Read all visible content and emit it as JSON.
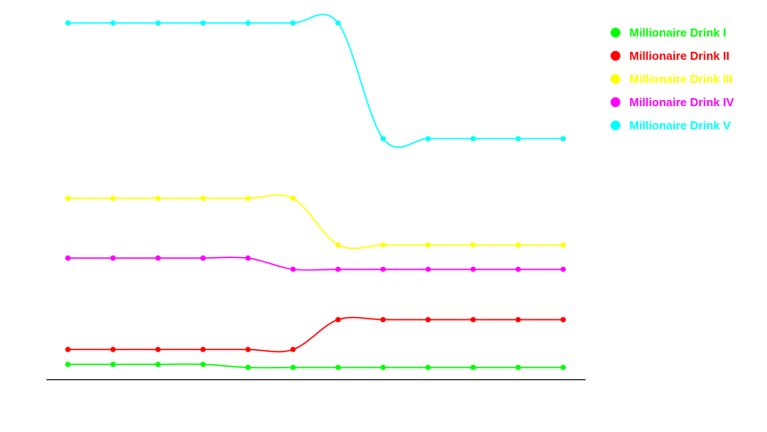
{
  "chart_data": {
    "type": "line",
    "title": "",
    "xlabel": "",
    "ylabel": "",
    "ylim": [
      0,
      100
    ],
    "grid": false,
    "legend_position": "right",
    "x": [
      1,
      2,
      3,
      4,
      5,
      6,
      7,
      8,
      9,
      10,
      11,
      12
    ],
    "series": [
      {
        "name": "Millionaire Drink I",
        "color": "#00ff00",
        "values": [
          4.0,
          4.0,
          4.0,
          4.0,
          3.2,
          3.2,
          3.2,
          3.2,
          3.2,
          3.2,
          3.2,
          3.2
        ]
      },
      {
        "name": "Millionaire Drink II",
        "color": "#ff0000",
        "values": [
          8.0,
          8.0,
          8.0,
          8.0,
          8.0,
          8.0,
          16.0,
          16.0,
          16.0,
          16.0,
          16.0,
          16.0
        ]
      },
      {
        "name": "Millionaire Drink III",
        "color": "#ffff00",
        "values": [
          48.5,
          48.5,
          48.5,
          48.5,
          48.5,
          48.5,
          36.0,
          36.0,
          36.0,
          36.0,
          36.0,
          36.0
        ]
      },
      {
        "name": "Millionaire Drink IV",
        "color": "#ff00ff",
        "values": [
          32.5,
          32.5,
          32.5,
          32.5,
          32.5,
          29.5,
          29.5,
          29.5,
          29.5,
          29.5,
          29.5,
          29.5
        ]
      },
      {
        "name": "Millionaire Drink V",
        "color": "#00ffff",
        "values": [
          95.5,
          95.5,
          95.5,
          95.5,
          95.5,
          95.5,
          95.5,
          64.5,
          64.5,
          64.5,
          64.5,
          64.5
        ]
      }
    ]
  }
}
